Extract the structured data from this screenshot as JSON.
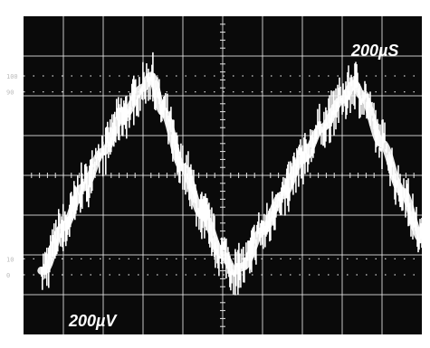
{
  "scope": {
    "time_per_div": "200µS",
    "volts_per_div": "200µV",
    "percent_labels": {
      "p100": "100",
      "p90": "90",
      "p10": "10",
      "p0": "0"
    },
    "colors": {
      "background": "#0a0a0a",
      "trace": "#ffffff",
      "grid": "#e6e6e6",
      "bezel": "#ffffff"
    }
  },
  "chart_data": {
    "type": "line",
    "title": "",
    "xlabel": "",
    "ylabel": "",
    "x_divisions": 10,
    "y_divisions": 8,
    "xlim": [
      0,
      10
    ],
    "ylim": [
      -4,
      4
    ],
    "x_unit_per_div": "200µS",
    "y_unit_per_div": "200µV",
    "grid": true,
    "series": [
      {
        "name": "",
        "x": [
          0.0,
          0.5,
          1.0,
          1.5,
          2.0,
          2.5,
          3.0,
          3.2,
          3.5,
          4.0,
          4.5,
          5.0,
          5.3,
          5.5,
          6.0,
          6.5,
          7.0,
          7.5,
          8.0,
          8.3,
          8.5,
          9.0,
          9.5,
          10.0
        ],
        "y": [
          -2.2,
          -2.4,
          -1.3,
          -0.3,
          0.6,
          1.5,
          2.2,
          2.5,
          1.6,
          0.2,
          -1.0,
          -2.0,
          -2.4,
          -2.3,
          -1.4,
          -0.5,
          0.4,
          1.2,
          1.9,
          2.3,
          2.0,
          0.8,
          -0.4,
          -1.6
        ],
        "noise_band_divisions": 0.5
      }
    ]
  }
}
